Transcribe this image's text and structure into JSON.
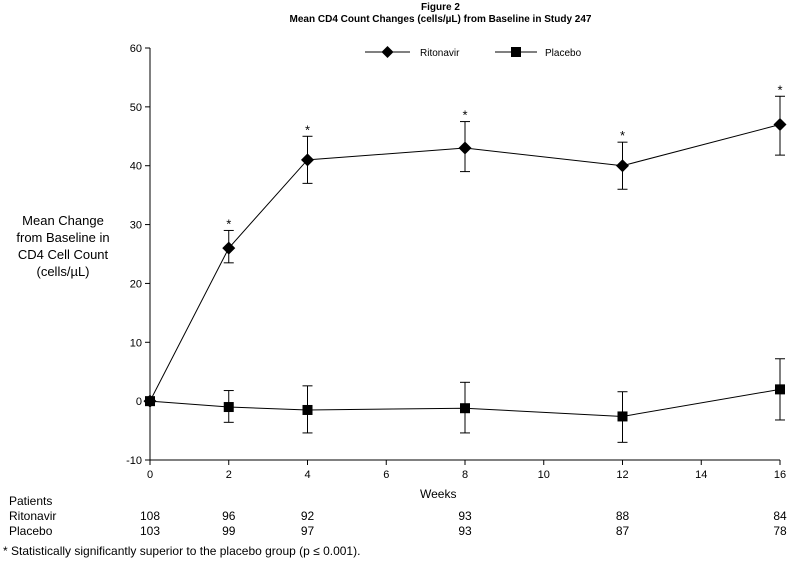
{
  "chart_data": {
    "type": "line",
    "figure_label": "Figure 2",
    "title": "Mean CD4 Count Changes (cells/µL) from Baseline in Study 247",
    "xlabel": "Weeks",
    "ylabel": "Mean Change from Baseline in CD4 Cell Count (cells/µL)",
    "xlim": [
      0,
      16
    ],
    "ylim": [
      -10,
      60
    ],
    "x_ticks": [
      0,
      2,
      4,
      6,
      8,
      10,
      12,
      14,
      16
    ],
    "y_ticks": [
      -10,
      0,
      10,
      20,
      30,
      40,
      50,
      60
    ],
    "grid": false,
    "legend_position": "top-center",
    "series": [
      {
        "name": "Ritonavir",
        "marker": "diamond",
        "color": "#000000",
        "x": [
          0,
          2,
          4,
          8,
          12,
          16
        ],
        "y": [
          0,
          26,
          41,
          43,
          40,
          47
        ],
        "err_low": [
          null,
          23.5,
          37,
          39,
          36,
          41.8
        ],
        "err_high": [
          null,
          29,
          45,
          47.5,
          44,
          51.8
        ],
        "significant": [
          false,
          true,
          true,
          true,
          true,
          true
        ]
      },
      {
        "name": "Placebo",
        "marker": "square",
        "color": "#000000",
        "x": [
          0,
          2,
          4,
          8,
          12,
          16
        ],
        "y": [
          0,
          -1,
          -1.5,
          -1.2,
          -2.6,
          2
        ],
        "err_low": [
          null,
          -3.6,
          -5.4,
          -5.4,
          -7,
          -3.2
        ],
        "err_high": [
          null,
          1.8,
          2.6,
          3.2,
          1.6,
          7.2
        ],
        "significant": [
          false,
          false,
          false,
          false,
          false,
          false
        ]
      }
    ],
    "significance_marker": "*",
    "patients": {
      "title": "Patients",
      "weeks": [
        0,
        2,
        4,
        8,
        12,
        16
      ],
      "rows": [
        {
          "label": "Ritonavir",
          "counts": [
            "108",
            "96",
            "92",
            "93",
            "88",
            "84"
          ]
        },
        {
          "label": "Placebo",
          "counts": [
            "103",
            "99",
            "97",
            "93",
            "87",
            "78"
          ]
        }
      ]
    },
    "footnote": "* Statistically significantly superior to the placebo group (p ≤ 0.001)."
  }
}
